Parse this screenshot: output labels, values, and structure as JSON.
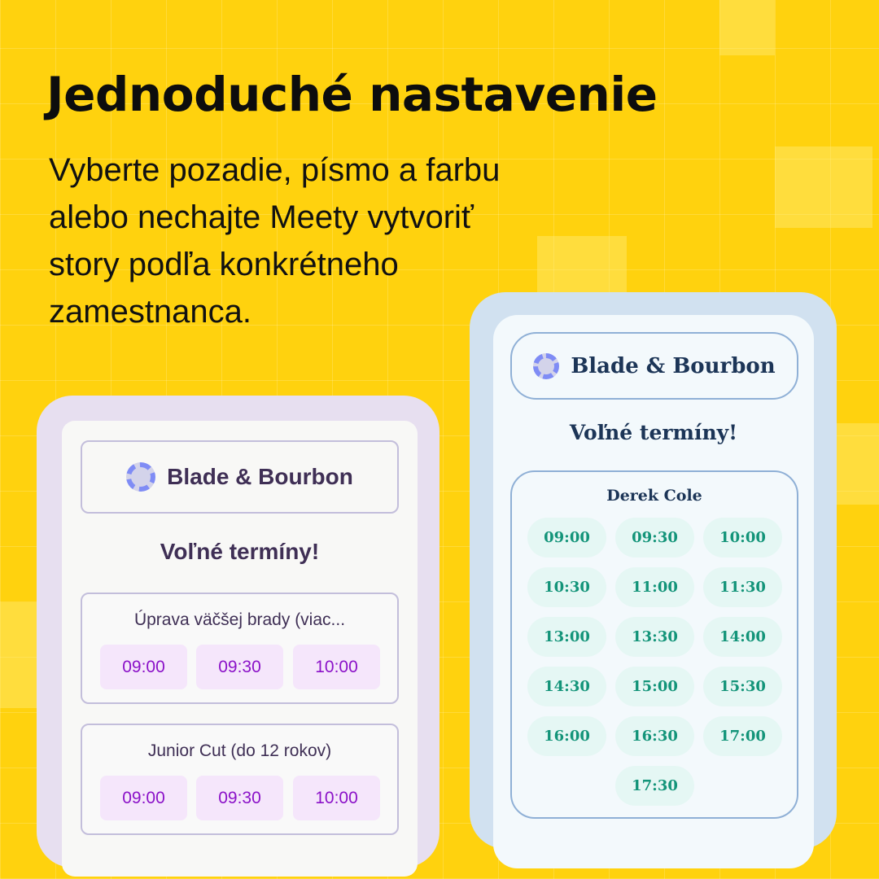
{
  "headline": "Jednoduché nastavenie",
  "subtitle_lines": [
    "Vyberte pozadie, písmo a farbu",
    "alebo nechajte Meety vytvoriť",
    "story podľa konkrétneho",
    "zamestnanca."
  ],
  "left_preview": {
    "brand": "Blade & Bourbon",
    "heading": "Voľné termíny!",
    "services": [
      {
        "title": "Úprava väčšej brady (viac...",
        "slots": [
          "09:00",
          "09:30",
          "10:00"
        ]
      },
      {
        "title": "Junior Cut (do 12 rokov)",
        "slots": [
          "09:00",
          "09:30",
          "10:00"
        ]
      }
    ],
    "colors": {
      "frame": "#E7DFF0",
      "slot_bg": "#F5E6FB",
      "slot_text": "#8B12C8"
    }
  },
  "right_preview": {
    "brand": "Blade & Bourbon",
    "heading": "Voľné termíny!",
    "staff": "Derek Cole",
    "slots": [
      "09:00",
      "09:30",
      "10:00",
      "10:30",
      "11:00",
      "11:30",
      "13:00",
      "13:30",
      "14:00",
      "14:30",
      "15:00",
      "15:30",
      "16:00",
      "16:30",
      "17:00",
      "17:30"
    ],
    "colors": {
      "frame": "#D1E1F0",
      "slot_bg": "#E5F7F4",
      "slot_text": "#139479"
    }
  },
  "background_color": "#FFD20E"
}
